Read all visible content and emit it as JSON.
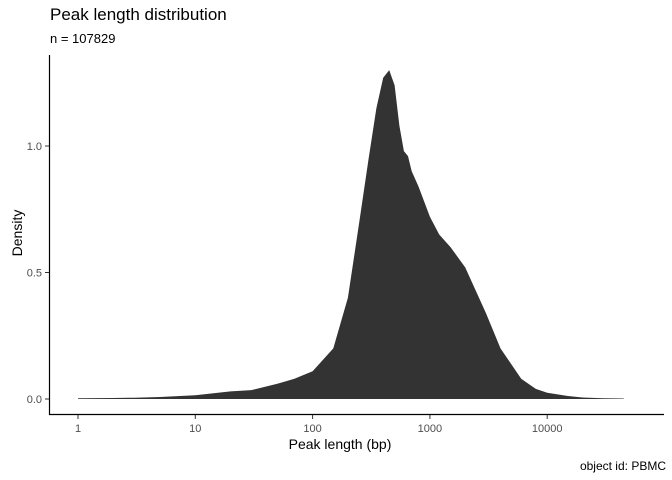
{
  "chart_data": {
    "type": "area",
    "title": "Peak length distribution",
    "subtitle": "n = 107829",
    "xlabel": "Peak length (bp)",
    "ylabel": "Density",
    "caption": "object id: PBMC",
    "x_scale": "log10",
    "x_ticks": [
      "1",
      "10",
      "100",
      "1000",
      "10000"
    ],
    "y_ticks": [
      "0.0",
      "0.5",
      "1.0"
    ],
    "ylim": [
      0,
      1.3
    ],
    "grid": false,
    "fill_color": "#333333",
    "x": [
      1,
      2,
      3,
      5,
      10,
      20,
      30,
      50,
      70,
      100,
      150,
      200,
      250,
      300,
      350,
      400,
      450,
      500,
      550,
      600,
      650,
      700,
      800,
      1000,
      1200,
      1500,
      2000,
      3000,
      4000,
      6000,
      8000,
      10000,
      15000,
      20000,
      30000,
      45000
    ],
    "values": [
      0.003,
      0.004,
      0.005,
      0.008,
      0.015,
      0.03,
      0.035,
      0.06,
      0.08,
      0.11,
      0.2,
      0.4,
      0.7,
      0.95,
      1.15,
      1.27,
      1.3,
      1.24,
      1.08,
      0.98,
      0.96,
      0.9,
      0.84,
      0.72,
      0.65,
      0.6,
      0.52,
      0.34,
      0.2,
      0.08,
      0.04,
      0.025,
      0.012,
      0.006,
      0.003,
      0.002
    ]
  }
}
